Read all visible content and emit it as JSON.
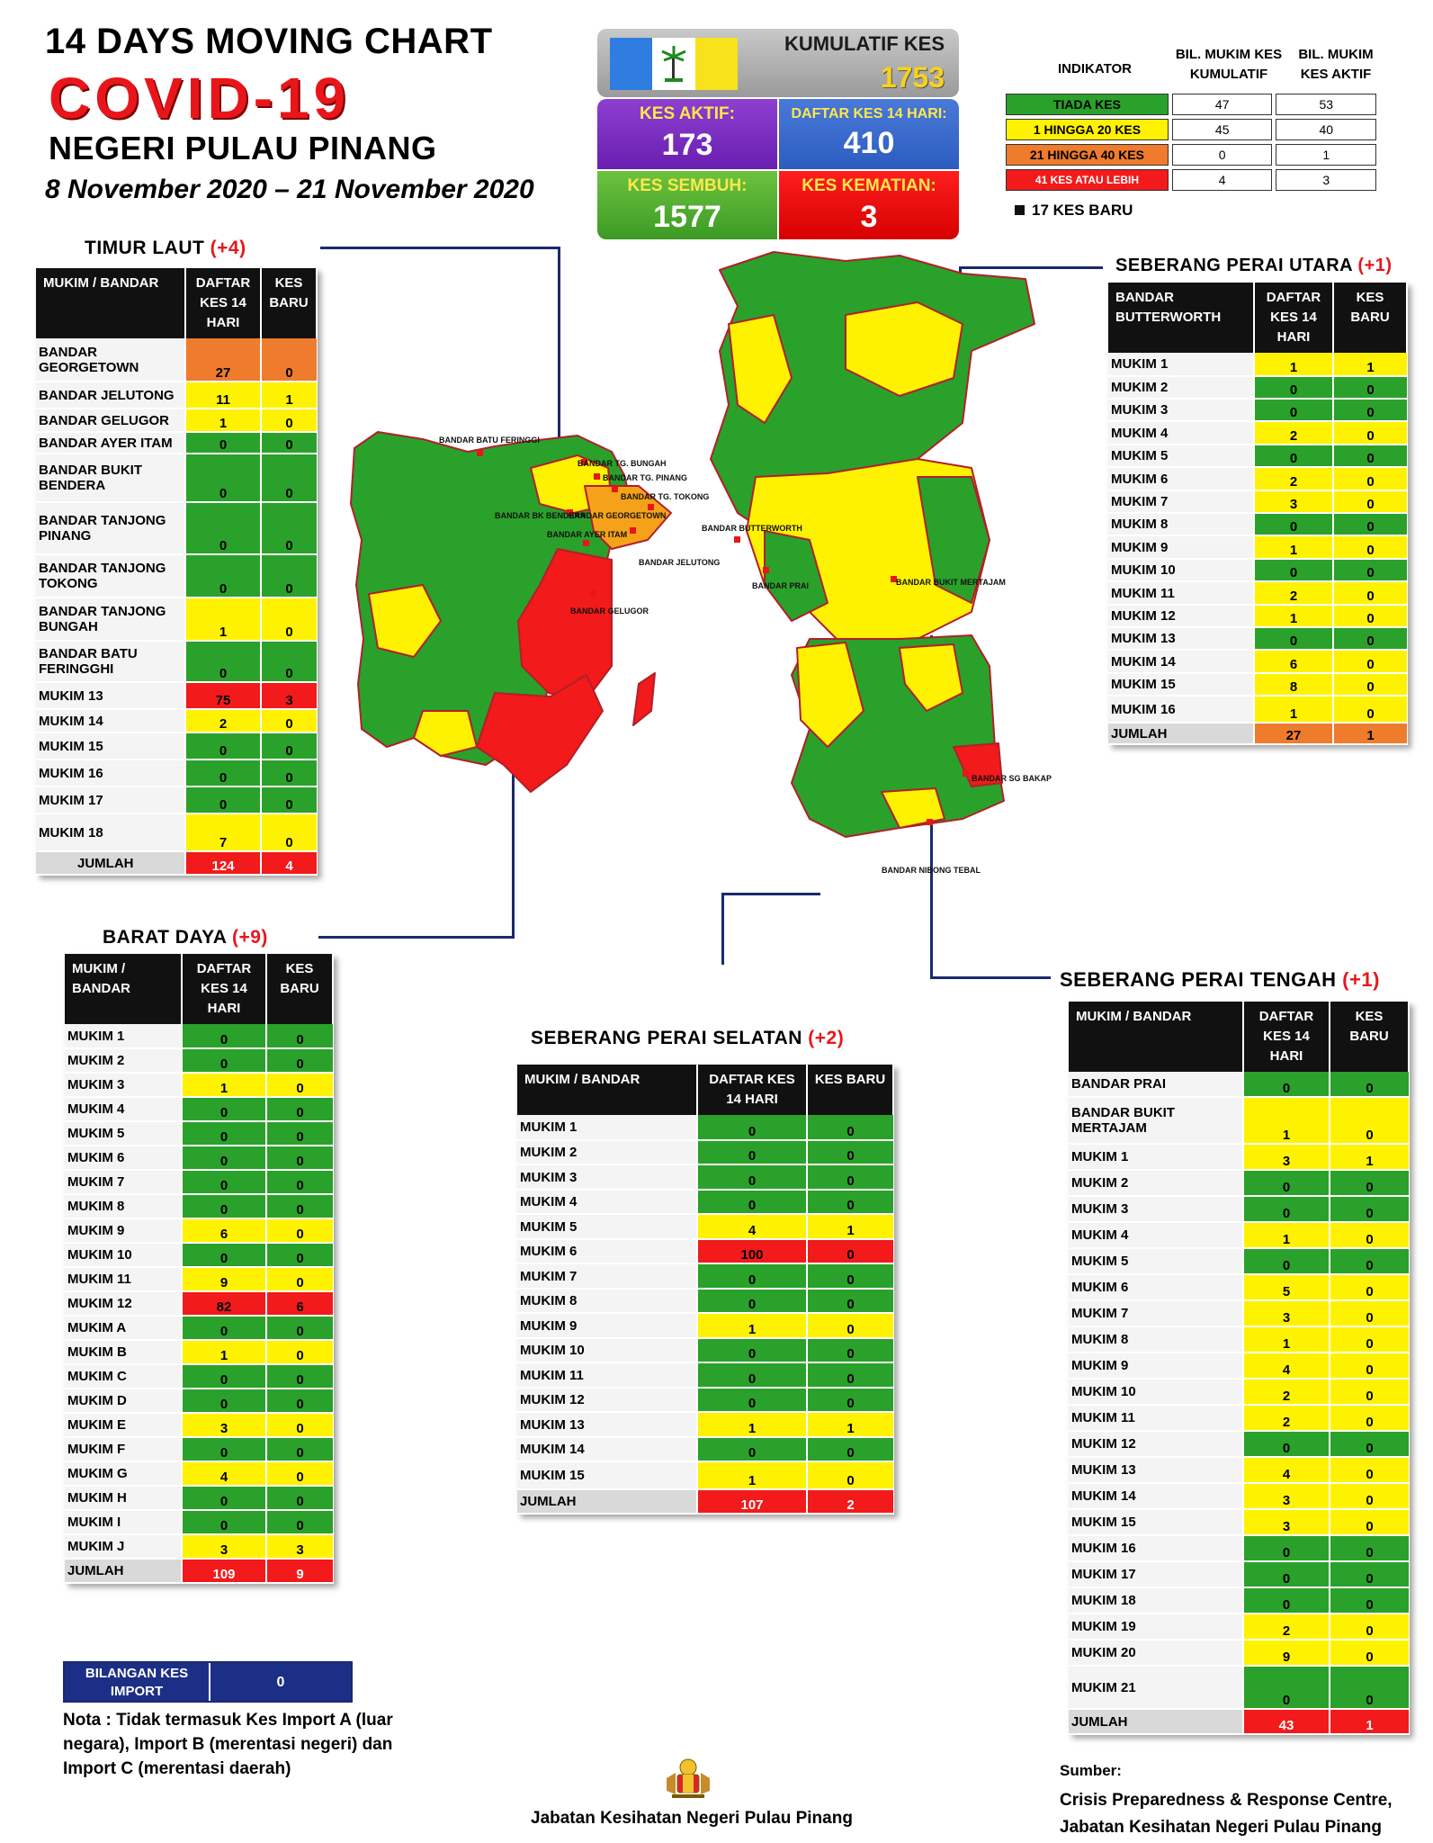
{
  "header": {
    "title_line1": "14  DAYS MOVING CHART",
    "title_line2": "COVID-19",
    "title_line3": "NEGERI PULAU PINANG",
    "date_range": "8 November 2020 – 21 November 2020"
  },
  "summary": {
    "cumulative_label": "KUMULATIF KES",
    "cumulative_value": "1753",
    "active_label": "KES AKTIF:",
    "active_value": "173",
    "list14_label": "DAFTAR KES 14 HARI:",
    "list14_value": "410",
    "recovered_label": "KES SEMBUH:",
    "recovered_value": "1577",
    "deaths_label": "KES KEMATIAN:",
    "deaths_value": "3"
  },
  "legend": {
    "col_indicator": "INDIKATOR",
    "col_cumulative": "BIL. MUKIM KES KUMULATIF",
    "col_active": "BIL. MUKIM KES AKTIF",
    "rows": [
      {
        "label": "TIADA KES",
        "cumulative": "47",
        "active": "53",
        "color": "#2aa12a"
      },
      {
        "label": "1 HINGGA 20 KES",
        "cumulative": "45",
        "active": "40",
        "color": "#fff200"
      },
      {
        "label": "21 HINGGA 40 KES",
        "cumulative": "0",
        "active": "1",
        "color": "#ef7b2d"
      },
      {
        "label": "41 KES ATAU LEBIH",
        "cumulative": "4",
        "active": "3",
        "color": "#f21a1a"
      }
    ],
    "new_cases": "17 KES BARU"
  },
  "regions": {
    "timur_laut": {
      "title": "TIMUR LAUT",
      "plus": "(+4)",
      "h1": "MUKIM / BANDAR",
      "h2": "DAFTAR KES 14 HARI",
      "h3": "KES BARU",
      "rows": [
        {
          "name": "BANDAR GEORGETOWN",
          "a": "27",
          "b": "0",
          "c": "o",
          "h": 48
        },
        {
          "name": "BANDAR JELUTONG",
          "a": "11",
          "b": "1",
          "c": "y",
          "h": 30
        },
        {
          "name": "BANDAR GELUGOR",
          "a": "1",
          "b": "0",
          "c": "y",
          "h": 26
        },
        {
          "name": "BANDAR AYER ITAM",
          "a": "0",
          "b": "0",
          "c": "g",
          "h": 24
        },
        {
          "name": "BANDAR BUKIT BENDERA",
          "a": "0",
          "b": "0",
          "c": "g",
          "h": 54
        },
        {
          "name": "BANDAR TANJONG PINANG",
          "a": "0",
          "b": "0",
          "c": "g",
          "h": 58
        },
        {
          "name": "BANDAR TANJONG TOKONG",
          "a": "0",
          "b": "0",
          "c": "g",
          "h": 48
        },
        {
          "name": "BANDAR TANJONG BUNGAH",
          "a": "1",
          "b": "0",
          "c": "y",
          "h": 48
        },
        {
          "name": "BANDAR BATU FERINGGHI",
          "a": "0",
          "b": "0",
          "c": "g",
          "h": 46
        },
        {
          "name": "MUKIM 13",
          "a": "75",
          "b": "3",
          "c": "r",
          "h": 30
        },
        {
          "name": "MUKIM 14",
          "a": "2",
          "b": "0",
          "c": "y",
          "h": 26
        },
        {
          "name": "MUKIM 15",
          "a": "0",
          "b": "0",
          "c": "g",
          "h": 30
        },
        {
          "name": "MUKIM 16",
          "a": "0",
          "b": "0",
          "c": "g",
          "h": 30
        },
        {
          "name": "MUKIM 17",
          "a": "0",
          "b": "0",
          "c": "g",
          "h": 30
        },
        {
          "name": "MUKIM 18",
          "a": "7",
          "b": "0",
          "c": "y",
          "h": 42
        },
        {
          "name": "JUMLAH",
          "a": "124",
          "b": "4",
          "c": "r",
          "h": 26,
          "total": true
        }
      ]
    },
    "barat_daya": {
      "title": "BARAT DAYA",
      "plus": "(+9)",
      "h1": "MUKIM / BANDAR",
      "h2": "DAFTAR KES 14 HARI",
      "h3": "KES BARU",
      "rows": [
        {
          "name": "MUKIM 1",
          "a": "0",
          "b": "0",
          "c": "g",
          "h": 27
        },
        {
          "name": "MUKIM 2",
          "a": "0",
          "b": "0",
          "c": "g",
          "h": 27
        },
        {
          "name": "MUKIM 3",
          "a": "1",
          "b": "0",
          "c": "y",
          "h": 27
        },
        {
          "name": "MUKIM 4",
          "a": "0",
          "b": "0",
          "c": "g",
          "h": 27
        },
        {
          "name": "MUKIM 5",
          "a": "0",
          "b": "0",
          "c": "g",
          "h": 27
        },
        {
          "name": "MUKIM 6",
          "a": "0",
          "b": "0",
          "c": "g",
          "h": 27
        },
        {
          "name": "MUKIM 7",
          "a": "0",
          "b": "0",
          "c": "g",
          "h": 27
        },
        {
          "name": "MUKIM 8",
          "a": "0",
          "b": "0",
          "c": "g",
          "h": 27
        },
        {
          "name": "MUKIM 9",
          "a": "6",
          "b": "0",
          "c": "y",
          "h": 27
        },
        {
          "name": "MUKIM 10",
          "a": "0",
          "b": "0",
          "c": "g",
          "h": 27
        },
        {
          "name": "MUKIM 11",
          "a": "9",
          "b": "0",
          "c": "y",
          "h": 27
        },
        {
          "name": "MUKIM 12",
          "a": "82",
          "b": "6",
          "c": "r",
          "h": 27
        },
        {
          "name": "MUKIM A",
          "a": "0",
          "b": "0",
          "c": "g",
          "h": 27
        },
        {
          "name": "MUKIM B",
          "a": "1",
          "b": "0",
          "c": "y",
          "h": 27
        },
        {
          "name": "MUKIM C",
          "a": "0",
          "b": "0",
          "c": "g",
          "h": 27
        },
        {
          "name": "MUKIM D",
          "a": "0",
          "b": "0",
          "c": "g",
          "h": 27
        },
        {
          "name": "MUKIM E",
          "a": "3",
          "b": "0",
          "c": "y",
          "h": 27
        },
        {
          "name": "MUKIM F",
          "a": "0",
          "b": "0",
          "c": "g",
          "h": 27
        },
        {
          "name": "MUKIM G",
          "a": "4",
          "b": "0",
          "c": "y",
          "h": 27
        },
        {
          "name": "MUKIM H",
          "a": "0",
          "b": "0",
          "c": "g",
          "h": 27
        },
        {
          "name": "MUKIM I",
          "a": "0",
          "b": "0",
          "c": "g",
          "h": 27
        },
        {
          "name": "MUKIM J",
          "a": "3",
          "b": "3",
          "c": "y",
          "h": 27
        },
        {
          "name": "JUMLAH",
          "a": "109",
          "b": "9",
          "c": "r",
          "h": 27,
          "total": true
        }
      ]
    },
    "spu": {
      "title": "SEBERANG PERAI UTARA",
      "plus": "(+1)",
      "h1": "BANDAR BUTTERWORTH",
      "h2": "DAFTAR KES 14 HARI",
      "h3": "KES BARU",
      "rows": [
        {
          "name": "MUKIM 1",
          "a": "1",
          "b": "1",
          "c": "y",
          "h": 26
        },
        {
          "name": "MUKIM 2",
          "a": "0",
          "b": "0",
          "c": "g",
          "h": 25
        },
        {
          "name": "MUKIM 3",
          "a": "0",
          "b": "0",
          "c": "g",
          "h": 25
        },
        {
          "name": "MUKIM 4",
          "a": "2",
          "b": "0",
          "c": "y",
          "h": 26
        },
        {
          "name": "MUKIM 5",
          "a": "0",
          "b": "0",
          "c": "g",
          "h": 25
        },
        {
          "name": "MUKIM 6",
          "a": "2",
          "b": "0",
          "c": "y",
          "h": 26
        },
        {
          "name": "MUKIM 7",
          "a": "3",
          "b": "0",
          "c": "y",
          "h": 25
        },
        {
          "name": "MUKIM 8",
          "a": "0",
          "b": "0",
          "c": "g",
          "h": 25
        },
        {
          "name": "MUKIM 9",
          "a": "1",
          "b": "0",
          "c": "y",
          "h": 26
        },
        {
          "name": "MUKIM 10",
          "a": "0",
          "b": "0",
          "c": "g",
          "h": 25
        },
        {
          "name": "MUKIM 11",
          "a": "2",
          "b": "0",
          "c": "y",
          "h": 26
        },
        {
          "name": "MUKIM 12",
          "a": "1",
          "b": "0",
          "c": "y",
          "h": 25
        },
        {
          "name": "MUKIM 13",
          "a": "0",
          "b": "0",
          "c": "g",
          "h": 25
        },
        {
          "name": "MUKIM 14",
          "a": "6",
          "b": "0",
          "c": "y",
          "h": 26
        },
        {
          "name": "MUKIM 15",
          "a": "8",
          "b": "0",
          "c": "y",
          "h": 25
        },
        {
          "name": "MUKIM 16",
          "a": "1",
          "b": "0",
          "c": "y",
          "h": 30
        },
        {
          "name": "JUMLAH",
          "a": "27",
          "b": "1",
          "c": "o",
          "h": 24,
          "total": true
        }
      ]
    },
    "sps": {
      "title": "SEBERANG PERAI SELATAN",
      "plus": "(+2)",
      "h1": "MUKIM / BANDAR",
      "h2": "DAFTAR KES 14 HARI",
      "h3": "KES BARU",
      "rows": [
        {
          "name": "MUKIM 1",
          "a": "0",
          "b": "0",
          "c": "g",
          "h": 28
        },
        {
          "name": "MUKIM 2",
          "a": "0",
          "b": "0",
          "c": "g",
          "h": 27
        },
        {
          "name": "MUKIM 3",
          "a": "0",
          "b": "0",
          "c": "g",
          "h": 28
        },
        {
          "name": "MUKIM 4",
          "a": "0",
          "b": "0",
          "c": "g",
          "h": 27
        },
        {
          "name": "MUKIM 5",
          "a": "4",
          "b": "1",
          "c": "y",
          "h": 28
        },
        {
          "name": "MUKIM 6",
          "a": "100",
          "b": "0",
          "c": "r",
          "h": 27
        },
        {
          "name": "MUKIM 7",
          "a": "0",
          "b": "0",
          "c": "g",
          "h": 28
        },
        {
          "name": "MUKIM 8",
          "a": "0",
          "b": "0",
          "c": "g",
          "h": 27
        },
        {
          "name": "MUKIM 9",
          "a": "1",
          "b": "0",
          "c": "y",
          "h": 28
        },
        {
          "name": "MUKIM 10",
          "a": "0",
          "b": "0",
          "c": "g",
          "h": 27
        },
        {
          "name": "MUKIM 11",
          "a": "0",
          "b": "0",
          "c": "g",
          "h": 28
        },
        {
          "name": "MUKIM 12",
          "a": "0",
          "b": "0",
          "c": "g",
          "h": 27
        },
        {
          "name": "MUKIM 13",
          "a": "1",
          "b": "1",
          "c": "y",
          "h": 28
        },
        {
          "name": "MUKIM 14",
          "a": "0",
          "b": "0",
          "c": "g",
          "h": 27
        },
        {
          "name": "MUKIM 15",
          "a": "1",
          "b": "0",
          "c": "y",
          "h": 31
        },
        {
          "name": "JUMLAH",
          "a": "107",
          "b": "2",
          "c": "r",
          "h": 27,
          "total": true
        }
      ]
    },
    "spt": {
      "title": "SEBERANG PERAI TENGAH",
      "plus": "(+1)",
      "h1": "MUKIM / BANDAR",
      "h2": "DAFTAR KES 14 HARI",
      "h3": "KES BARU",
      "rows": [
        {
          "name": "BANDAR PRAI",
          "a": "0",
          "b": "0",
          "c": "g",
          "h": 28
        },
        {
          "name": "BANDAR BUKIT MERTAJAM",
          "a": "1",
          "b": "0",
          "c": "y",
          "h": 52
        },
        {
          "name": "MUKIM 1",
          "a": "3",
          "b": "1",
          "c": "y",
          "h": 29
        },
        {
          "name": "MUKIM 2",
          "a": "0",
          "b": "0",
          "c": "g",
          "h": 29
        },
        {
          "name": "MUKIM 3",
          "a": "0",
          "b": "0",
          "c": "g",
          "h": 29
        },
        {
          "name": "MUKIM 4",
          "a": "1",
          "b": "0",
          "c": "y",
          "h": 29
        },
        {
          "name": "MUKIM 5",
          "a": "0",
          "b": "0",
          "c": "g",
          "h": 29
        },
        {
          "name": "MUKIM 6",
          "a": "5",
          "b": "0",
          "c": "y",
          "h": 29
        },
        {
          "name": "MUKIM 7",
          "a": "3",
          "b": "0",
          "c": "y",
          "h": 29
        },
        {
          "name": "MUKIM 8",
          "a": "1",
          "b": "0",
          "c": "y",
          "h": 29
        },
        {
          "name": "MUKIM 9",
          "a": "4",
          "b": "0",
          "c": "y",
          "h": 29
        },
        {
          "name": "MUKIM 10",
          "a": "2",
          "b": "0",
          "c": "y",
          "h": 29
        },
        {
          "name": "MUKIM 11",
          "a": "2",
          "b": "0",
          "c": "y",
          "h": 29
        },
        {
          "name": "MUKIM 12",
          "a": "0",
          "b": "0",
          "c": "g",
          "h": 29
        },
        {
          "name": "MUKIM 13",
          "a": "4",
          "b": "0",
          "c": "y",
          "h": 29
        },
        {
          "name": "MUKIM 14",
          "a": "3",
          "b": "0",
          "c": "y",
          "h": 29
        },
        {
          "name": "MUKIM 15",
          "a": "3",
          "b": "0",
          "c": "y",
          "h": 29
        },
        {
          "name": "MUKIM 16",
          "a": "0",
          "b": "0",
          "c": "g",
          "h": 29
        },
        {
          "name": "MUKIM 17",
          "a": "0",
          "b": "0",
          "c": "g",
          "h": 29
        },
        {
          "name": "MUKIM 18",
          "a": "0",
          "b": "0",
          "c": "g",
          "h": 29
        },
        {
          "name": "MUKIM 19",
          "a": "2",
          "b": "0",
          "c": "y",
          "h": 29
        },
        {
          "name": "MUKIM 20",
          "a": "9",
          "b": "0",
          "c": "y",
          "h": 29
        },
        {
          "name": "MUKIM 21",
          "a": "0",
          "b": "0",
          "c": "g",
          "h": 48
        },
        {
          "name": "JUMLAH",
          "a": "43",
          "b": "1",
          "c": "r",
          "h": 28,
          "total": true
        }
      ]
    }
  },
  "map_labels": {
    "batu_feringgi": "BANDAR BATU FERINGGI",
    "tg_bungah": "BANDAR TG. BUNGAH",
    "tg_pinang": "BANDAR TG. PINANG",
    "tg_tokong": "BANDAR TG. TOKONG",
    "georgetown": "BANDAR GEORGETOWN",
    "ayer_itam": "BANDAR AYER ITAM",
    "jelutong": "BANDAR JELUTONG",
    "bukit_bendera": "BANDAR BK BENDERA",
    "gelugor": "BANDAR GELUGOR",
    "butterworth": "BANDAR BUTTERWORTH",
    "prai": "BANDAR PRAI",
    "bukit_mertajam": "BANDAR BUKIT MERTAJAM",
    "sg_bakap": "BANDAR SG BAKAP",
    "nibong_tebal": "BANDAR NIBONG TEBAL"
  },
  "import": {
    "label": "BILANGAN KES IMPORT",
    "value": "0",
    "note": "Nota : Tidak termasuk Kes Import A (luar negara), Import B (merentasi negeri) dan Import C (merentasi daerah)"
  },
  "footer": {
    "center": "Jabatan Kesihatan Negeri Pulau Pinang",
    "source_label": "Sumber:",
    "source_line1": "Crisis Preparedness & Response Centre,",
    "source_line2": "Jabatan Kesihatan Negeri Pulau Pinang"
  },
  "colors": {
    "green": "#2aa12a",
    "yellow": "#fff200",
    "orange": "#ef7b2d",
    "red": "#f21a1a"
  }
}
